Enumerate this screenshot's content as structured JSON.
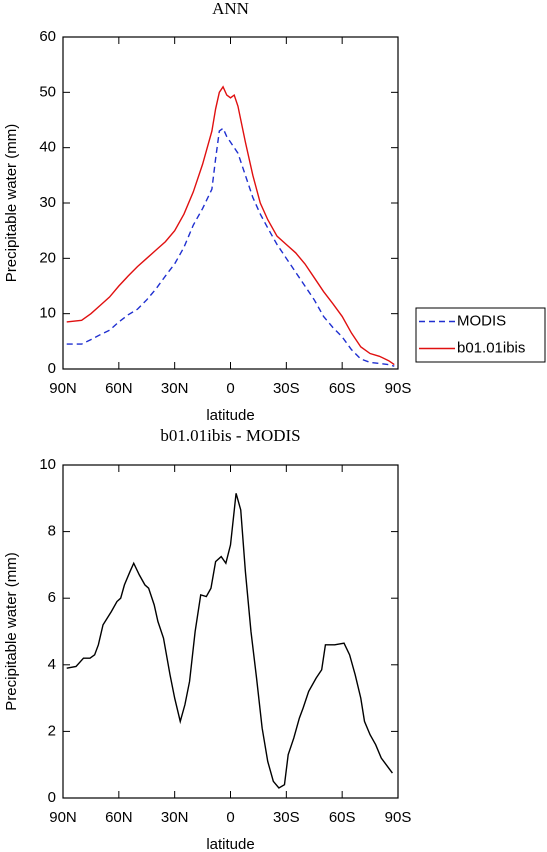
{
  "chart_data": [
    {
      "type": "line",
      "title": "ANN",
      "xlabel": "latitude",
      "ylabel": "Precipitable water (mm)",
      "x": [
        88,
        80,
        75,
        70,
        65,
        60,
        55,
        50,
        45,
        40,
        35,
        30,
        25,
        20,
        15,
        10,
        8,
        6,
        4,
        2,
        0,
        -2,
        -4,
        -8,
        -12,
        -16,
        -20,
        -25,
        -30,
        -35,
        -40,
        -45,
        -50,
        -55,
        -60,
        -65,
        -70,
        -75,
        -80,
        -85,
        -88
      ],
      "series": [
        {
          "name": "MODIS",
          "color": "#1f2fd0",
          "dash": true,
          "values": [
            4.5,
            4.5,
            5.3,
            6.2,
            7,
            8.5,
            9.8,
            10.8,
            12.5,
            14.5,
            16.8,
            19,
            22,
            26,
            29,
            32.5,
            38,
            43,
            43.5,
            42,
            41,
            40,
            39,
            35,
            31,
            28,
            25.5,
            22.5,
            20,
            17.5,
            15,
            12.5,
            9.5,
            7.5,
            5.8,
            3.5,
            1.8,
            1.2,
            1,
            0.8,
            0.5
          ]
        },
        {
          "name": "b01.01ibis",
          "color": "#e01010",
          "dash": false,
          "values": [
            8.5,
            8.8,
            10,
            11.5,
            13,
            15,
            16.8,
            18.5,
            20,
            21.5,
            23,
            25,
            28,
            32,
            37,
            43,
            47,
            50,
            51,
            49.5,
            49,
            49.5,
            47.5,
            41,
            35,
            30,
            27,
            24,
            22.5,
            21,
            19,
            16.5,
            14,
            11.8,
            9.5,
            6.5,
            4,
            2.8,
            2.3,
            1.5,
            0.8
          ]
        }
      ],
      "xlim": [
        90,
        -90
      ],
      "xticks": [
        {
          "value": 90,
          "label": "90N"
        },
        {
          "value": 60,
          "label": "60N"
        },
        {
          "value": 30,
          "label": "30N"
        },
        0,
        {
          "value": -30,
          "label": "30S"
        },
        {
          "value": -60,
          "label": "60S"
        },
        {
          "value": -90,
          "label": "90S"
        }
      ],
      "ylim": [
        0,
        60
      ],
      "yticks": [
        0,
        10,
        20,
        30,
        40,
        50,
        60
      ],
      "legend": "right"
    },
    {
      "type": "line",
      "title": "b01.01ibis - MODIS",
      "xlabel": "latitude",
      "ylabel": "Precipitable water (mm)",
      "x": [
        88,
        83,
        79,
        75.5,
        73,
        71,
        68.5,
        64,
        61,
        59,
        57,
        54,
        52,
        49,
        46,
        44,
        41,
        39,
        36,
        32.5,
        30,
        27,
        24.5,
        22,
        19,
        16,
        13,
        10.5,
        8,
        5,
        2.5,
        0,
        -3,
        -5.5,
        -8,
        -11,
        -14,
        -17,
        -20,
        -23,
        -26,
        -29,
        -31,
        -34,
        -37,
        -39,
        -42,
        -46,
        -49,
        -51,
        -54,
        -56,
        -61,
        -64,
        -67,
        -70,
        -72,
        -75,
        -78,
        -81,
        -85,
        -87
      ],
      "series": [
        {
          "color": "#000000",
          "dash": false,
          "values": [
            3.9,
            3.95,
            4.2,
            4.2,
            4.3,
            4.6,
            5.2,
            5.6,
            5.9,
            6.0,
            6.4,
            6.8,
            7.05,
            6.7,
            6.4,
            6.3,
            5.8,
            5.3,
            4.8,
            3.7,
            3.0,
            2.3,
            2.8,
            3.5,
            5.0,
            6.1,
            6.05,
            6.3,
            7.1,
            7.25,
            7.05,
            7.6,
            9.15,
            8.65,
            6.8,
            5.0,
            3.6,
            2.1,
            1.1,
            0.5,
            0.3,
            0.4,
            1.3,
            1.8,
            2.4,
            2.7,
            3.2,
            3.6,
            3.85,
            4.6,
            4.6,
            4.6,
            4.65,
            4.3,
            3.7,
            3.0,
            2.3,
            1.9,
            1.6,
            1.2,
            0.9,
            0.75
          ]
        }
      ],
      "xlim": [
        90,
        -90
      ],
      "xticks": [
        {
          "value": 90,
          "label": "90N"
        },
        {
          "value": 60,
          "label": "60N"
        },
        {
          "value": 30,
          "label": "30N"
        },
        0,
        {
          "value": -30,
          "label": "30S"
        },
        {
          "value": -60,
          "label": "60S"
        },
        {
          "value": -90,
          "label": "90S"
        }
      ],
      "ylim": [
        0,
        10
      ],
      "yticks": [
        0,
        2,
        4,
        6,
        8,
        10
      ]
    }
  ]
}
